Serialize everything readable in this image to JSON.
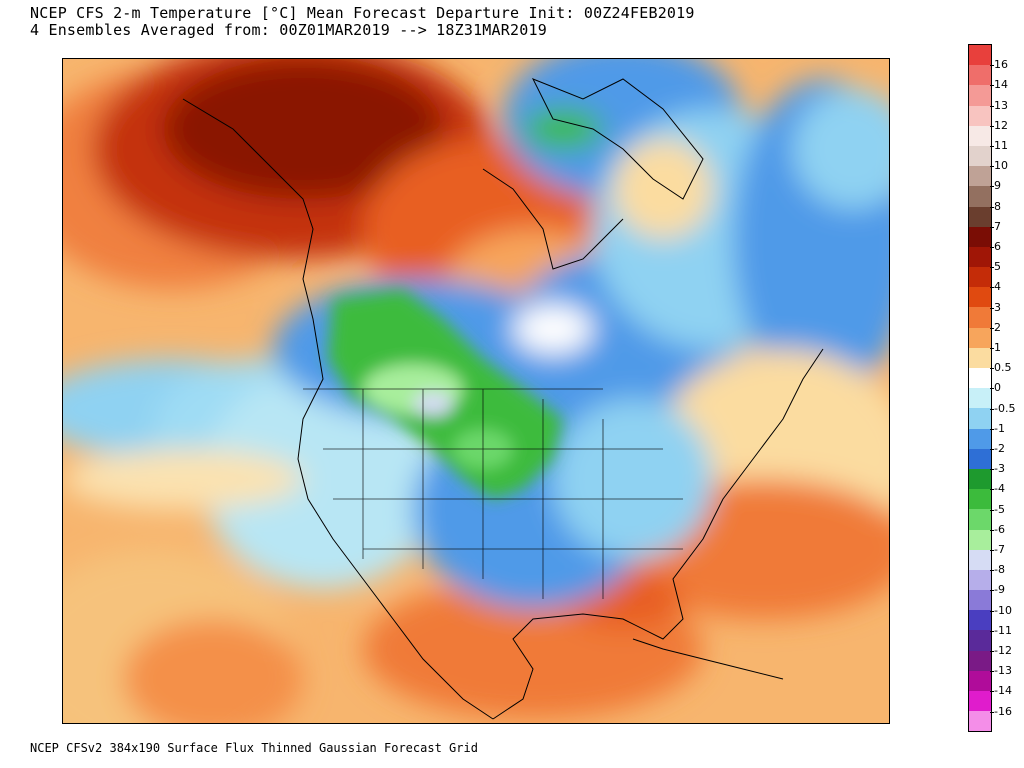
{
  "header": {
    "line1": "NCEP CFS 2-m Temperature [°C] Mean Forecast Departure Init: 00Z24FEB2019",
    "line2": "4 Ensembles Averaged from: 00Z01MAR2019 --> 18Z31MAR2019"
  },
  "footer": {
    "text": "NCEP CFSv2 384x190 Surface Flux Thinned Gaussian Forecast Grid"
  },
  "legend": {
    "labels": [
      "16",
      "14",
      "13",
      "12",
      "11",
      "10",
      "9",
      "8",
      "7",
      "6",
      "5",
      "4",
      "3",
      "2",
      "1",
      "0.5",
      "0",
      "-0.5",
      "-1",
      "-2",
      "-3",
      "-4",
      "-5",
      "-6",
      "-7",
      "-8",
      "-9",
      "-10",
      "-11",
      "-12",
      "-13",
      "-14",
      "-16"
    ],
    "colors": [
      "#e8403c",
      "#ef6e6a",
      "#f49a96",
      "#f8c4c0",
      "#f7e9e6",
      "#e2d2cc",
      "#bfa296",
      "#937060",
      "#6a3e2e",
      "#7a0d05",
      "#a01606",
      "#c42c08",
      "#e04a10",
      "#f07a38",
      "#f7a55c",
      "#fbdca0",
      "#ffffff",
      "#c8f0f8",
      "#8fd2f2",
      "#4f9ae8",
      "#2e6fd6",
      "#1e9a2e",
      "#3cbb3c",
      "#6cd86a",
      "#a8ee9c",
      "#d6dcf4",
      "#b6aeea",
      "#8a7ad8",
      "#4a3ec0",
      "#5a2a9a",
      "#7a1a86",
      "#b00c9a",
      "#e01ccc",
      "#f48ee8"
    ]
  },
  "map": {
    "regions": [
      "Alaska (warm)",
      "Northwest Canada (very warm)",
      "Northern Plains (cold)",
      "Greenland (cold)",
      "Southeast US and Gulf (warm)",
      "Central Pacific (warm)"
    ]
  }
}
